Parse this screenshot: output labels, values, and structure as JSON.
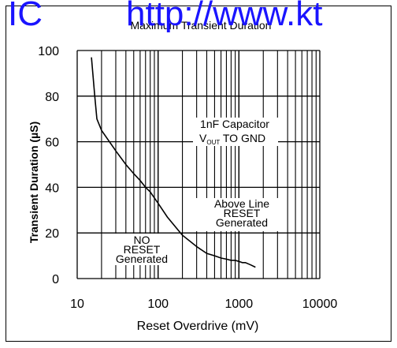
{
  "watermark": {
    "left": "IC",
    "right": "http://www.kt",
    "color": "#1a14ff"
  },
  "chart_data": {
    "type": "line",
    "title": "Maximum Transient Duration",
    "xlabel": "Reset Overdrive (mV)",
    "ylabel": "Transient Duration (µS)",
    "x_scale": "log",
    "xlim": [
      10,
      10000
    ],
    "ylim": [
      0,
      100
    ],
    "grid": true,
    "x_ticks": [
      "10",
      "100",
      "1000",
      "10000"
    ],
    "y_ticks": [
      "0",
      "20",
      "40",
      "60",
      "80",
      "100"
    ],
    "series": [
      {
        "x": [
          15,
          16.5,
          17.5,
          20,
          25,
          30,
          40,
          50,
          60,
          70,
          80,
          100,
          130,
          170,
          200,
          300,
          400,
          500,
          600,
          700,
          800,
          900,
          1000,
          1100,
          1200,
          1400,
          1600
        ],
        "y": [
          97,
          80,
          70,
          65,
          60,
          56,
          50,
          46,
          43,
          40,
          38,
          33,
          27,
          22,
          19,
          14,
          11,
          10,
          9,
          8.5,
          8,
          8,
          7.5,
          7,
          7,
          6,
          5
        ]
      }
    ],
    "annotations": {
      "no_reset": [
        "NO",
        "RESET",
        "Generated"
      ],
      "above_line": [
        "Above Line",
        "RESET",
        "Generated"
      ],
      "capacitor_line1": "1nF Capacitor",
      "capacitor_v": "V",
      "capacitor_sub": "OUT",
      "capacitor_rest": " TO GND"
    }
  }
}
